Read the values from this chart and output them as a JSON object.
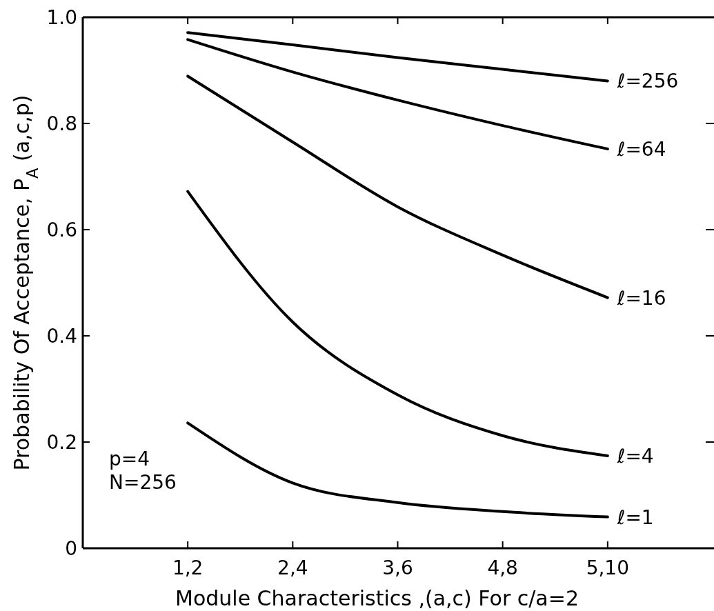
{
  "chart_data": {
    "type": "line",
    "xlabel": "Module Characteristics ,(a,c) For c/a=2",
    "ylabel": "Probability Of Acceptance, P$_{A}$ (a,c,p)",
    "ylim": [
      0,
      1
    ],
    "categories": [
      "1,2",
      "2,4",
      "3,6",
      "4,8",
      "5,10"
    ],
    "yticks": [
      0,
      0.2,
      0.4,
      0.6,
      0.8,
      {
        "value": 1,
        "label": "1.0"
      }
    ],
    "series": [
      {
        "name": "ℓ=256",
        "color": "#000000",
        "values": [
          0.971,
          0.948,
          0.924,
          0.902,
          0.88
        ]
      },
      {
        "name": "ℓ=64",
        "color": "#000000",
        "values": [
          0.958,
          0.897,
          0.844,
          0.796,
          0.752
        ]
      },
      {
        "name": "ℓ=16",
        "color": "#000000",
        "values": [
          0.889,
          0.765,
          0.643,
          0.552,
          0.472
        ]
      },
      {
        "name": "ℓ=4",
        "color": "#000000",
        "values": [
          0.672,
          0.426,
          0.289,
          0.212,
          0.174
        ]
      },
      {
        "name": "ℓ=1",
        "color": "#000000",
        "values": [
          0.236,
          0.123,
          0.086,
          0.069,
          0.059
        ]
      }
    ],
    "annotations": [
      "p=4",
      "N=256"
    ],
    "grid": false,
    "marker": "none",
    "line_style": "solid"
  }
}
